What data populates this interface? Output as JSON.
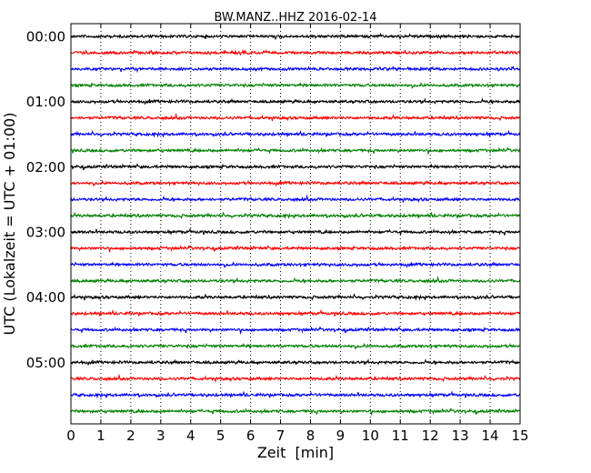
{
  "chart_data": {
    "type": "line",
    "title": "BW.MANZ..HHZ 2016-02-14",
    "xlabel": "Zeit  [min]",
    "ylabel": "UTC (Lokalzeit = UTC + 01:00)",
    "xlim": [
      0,
      15
    ],
    "x_ticks": [
      "0",
      "1",
      "2",
      "3",
      "4",
      "5",
      "6",
      "7",
      "8",
      "9",
      "10",
      "11",
      "12",
      "13",
      "14",
      "15"
    ],
    "y_tick_labels": [
      "00:00",
      "01:00",
      "02:00",
      "03:00",
      "04:00",
      "05:00"
    ],
    "traces_per_hour": 4,
    "trace_count": 24,
    "trace_colors": [
      "#000000",
      "#ff0000",
      "#0000ff",
      "#008000"
    ],
    "vertical_grid": "dotted",
    "horizontal_grid": false
  }
}
